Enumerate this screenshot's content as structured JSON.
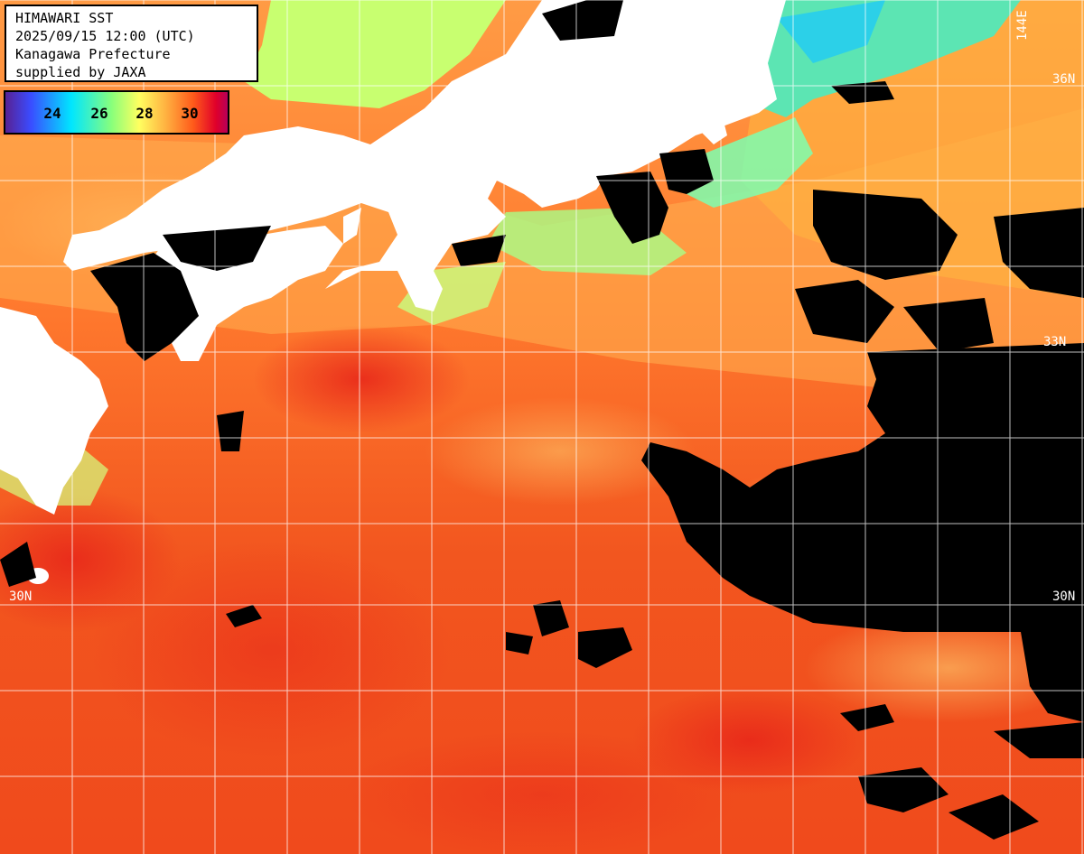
{
  "info": {
    "line1": "HIMAWARI SST",
    "line2": "2025/09/15 12:00 (UTC)",
    "line3": "Kanagawa Prefecture",
    "line4": "supplied by JAXA"
  },
  "colorbar": {
    "ticks": [
      "24",
      "26",
      "28",
      "30"
    ],
    "colors": [
      "#5a1e8c",
      "#3a4cff",
      "#00e6ff",
      "#8aff7a",
      "#ffff60",
      "#ffb040",
      "#ff5a1a",
      "#e0002a",
      "#b00060"
    ]
  },
  "grid": {
    "lat_labels": [
      "36N",
      "33N",
      "30N",
      "30N"
    ],
    "lon_labels": [
      "144E"
    ]
  },
  "palette": {
    "land": "#ffffff",
    "cloud": "#000000",
    "warm_sea": "#f0481c",
    "mid_sea": "#ff8a3a",
    "cool_sea": "#ffc060",
    "coastal": "#a8ff80",
    "grid_line": "#ffffff"
  }
}
